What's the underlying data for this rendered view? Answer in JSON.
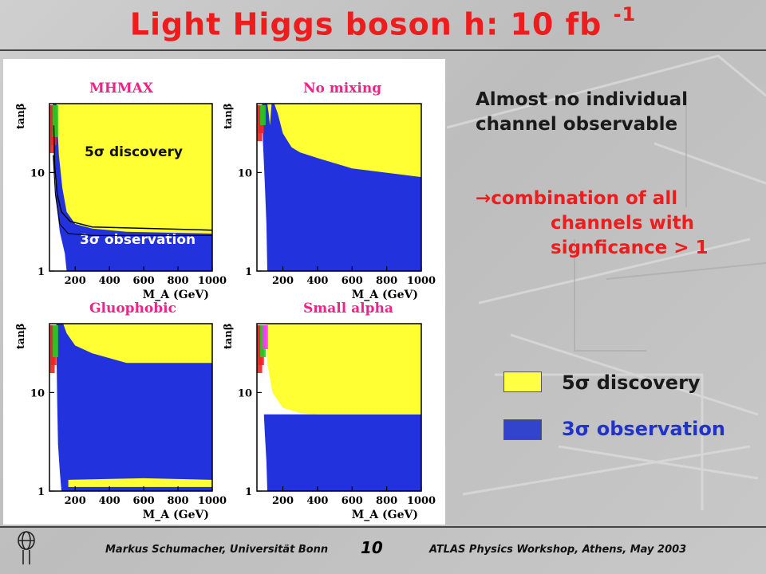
{
  "slide": {
    "title": "Light Higgs boson h: 10 fb",
    "title_sup": "-1",
    "note1_line1": "Almost no  individual",
    "note1_line2": "channel observable",
    "note2_line1": "combination of all",
    "note2_line2": "channels with",
    "note2_line3": "signficance > 1",
    "arrow_glyph": "→",
    "footer_left": "Markus Schumacher,  Universität Bonn",
    "page_number": "10",
    "footer_right": "ATLAS Physics Workshop, Athens, May 2003",
    "colors": {
      "title": "#ee1c1c",
      "discovery": "#ffff33",
      "observation": "#2233dd",
      "note": "#1a1a1a",
      "legend_obs_text": "#2233cc"
    }
  },
  "legend": {
    "discovery_label": "5σ discovery",
    "observation_label": "3σ observation"
  },
  "chart_data": [
    {
      "type": "heatmap",
      "title": "MHMAX",
      "xlabel": "M_A (GeV)",
      "ylabel": "tanβ",
      "x_ticks": [
        "200",
        "400",
        "600",
        "800",
        "1000"
      ],
      "y_ticks": [
        "1",
        "10"
      ],
      "xlim": [
        50,
        1000
      ],
      "ylim": [
        1,
        50
      ],
      "y_scale": "log",
      "annotations": [
        "5σ discovery",
        "3σ observation"
      ],
      "regions": [
        {
          "name": "5σ discovery",
          "boundary_x": [
            90,
            120,
            150,
            200,
            300,
            500,
            1000
          ],
          "boundary_y": [
            50,
            8,
            4,
            3,
            2.7,
            2.5,
            2.4
          ]
        },
        {
          "name": "3σ observation",
          "boundary_x": [
            70,
            80,
            100,
            150,
            200,
            1000
          ],
          "boundary_y": [
            50,
            12,
            5,
            2.2,
            1.5,
            1.0
          ]
        }
      ]
    },
    {
      "type": "heatmap",
      "title": "No mixing",
      "xlabel": "M_A (GeV)",
      "ylabel": "tanβ",
      "x_ticks": [
        "200",
        "400",
        "600",
        "800",
        "1000"
      ],
      "y_ticks": [
        "1",
        "10"
      ],
      "xlim": [
        50,
        1000
      ],
      "ylim": [
        1,
        50
      ],
      "y_scale": "log",
      "regions": [
        {
          "name": "5σ discovery",
          "boundary_x": [
            150,
            250,
            400,
            600,
            1000
          ],
          "boundary_y": [
            50,
            18,
            14,
            11,
            9
          ]
        },
        {
          "name": "3σ observation",
          "boundary_x": [
            80,
            150,
            300,
            1000
          ],
          "boundary_y": [
            30,
            10,
            1,
            1
          ]
        }
      ]
    },
    {
      "type": "heatmap",
      "title": "Gluophobic",
      "xlabel": "M_A (GeV)",
      "ylabel": "tanβ",
      "x_ticks": [
        "200",
        "400",
        "600",
        "800",
        "1000"
      ],
      "y_ticks": [
        "1",
        "10"
      ],
      "xlim": [
        50,
        1000
      ],
      "ylim": [
        1,
        50
      ],
      "y_scale": "log",
      "regions": [
        {
          "name": "3σ observation",
          "boundary_x": [
            90,
            150,
            300,
            1000
          ],
          "boundary_y": [
            50,
            20,
            1,
            1
          ]
        },
        {
          "name": "5σ discovery",
          "boundary_x": [
            150,
            1000
          ],
          "boundary_y": [
            1.3,
            1.3
          ]
        }
      ]
    },
    {
      "type": "heatmap",
      "title": "Small alpha",
      "xlabel": "M_A (GeV)",
      "ylabel": "tanβ",
      "x_ticks": [
        "200",
        "400",
        "600",
        "800",
        "1000"
      ],
      "y_ticks": [
        "1",
        "10"
      ],
      "xlim": [
        50,
        1000
      ],
      "ylim": [
        1,
        50
      ],
      "y_scale": "log",
      "regions": [
        {
          "name": "5σ discovery",
          "boundary_x": [
            100,
            200,
            400,
            600,
            1000
          ],
          "boundary_y": [
            50,
            7,
            6,
            6,
            6
          ]
        },
        {
          "name": "3σ observation",
          "boundary_x": [
            90,
            150,
            300,
            1000
          ],
          "boundary_y": [
            6,
            3,
            1,
            1
          ]
        }
      ]
    }
  ]
}
